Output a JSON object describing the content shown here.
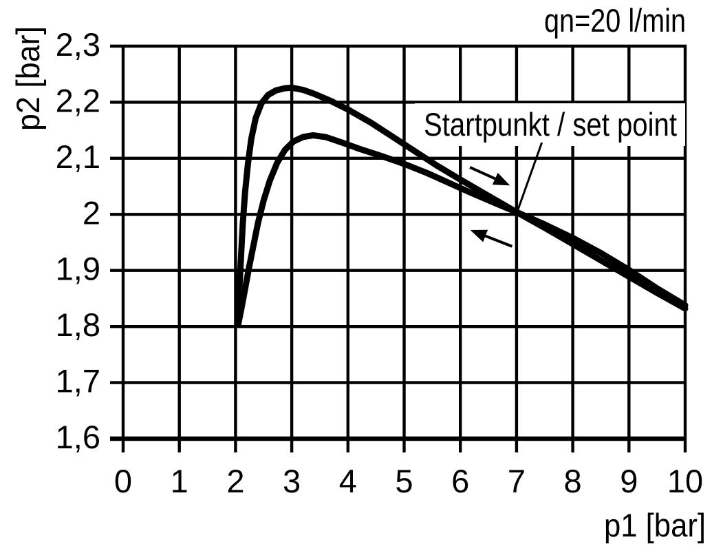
{
  "chart_data": {
    "type": "line",
    "title": "qn=20 l/min",
    "xlabel": "p1 [bar]",
    "ylabel": "p2 [bar]",
    "xlim": [
      0,
      10
    ],
    "ylim": [
      1.6,
      2.3
    ],
    "grid": true,
    "legend": "none",
    "line_color": "#000000",
    "background": "#ffffff",
    "x_ticks": {
      "values": [
        0,
        1,
        2,
        3,
        4,
        5,
        6,
        7,
        8,
        9,
        10
      ],
      "labels": [
        "0",
        "1",
        "2",
        "3",
        "4",
        "5",
        "6",
        "7",
        "8",
        "9",
        "10"
      ]
    },
    "y_ticks": {
      "values": [
        1.6,
        1.7,
        1.8,
        1.9,
        2.0,
        2.1,
        2.2,
        2.3
      ],
      "labels": [
        "1,6",
        "1,7",
        "1,8",
        "1,9",
        "2",
        "2,1",
        "2,2",
        "2,3"
      ]
    },
    "series": [
      {
        "name": "upper-branch",
        "arrow_direction": "right",
        "points": [
          [
            2.05,
            1.805
          ],
          [
            2.07,
            1.87
          ],
          [
            2.1,
            1.93
          ],
          [
            2.13,
            1.985
          ],
          [
            2.17,
            2.04
          ],
          [
            2.22,
            2.09
          ],
          [
            2.28,
            2.135
          ],
          [
            2.36,
            2.172
          ],
          [
            2.46,
            2.198
          ],
          [
            2.58,
            2.213
          ],
          [
            2.72,
            2.221
          ],
          [
            2.88,
            2.225
          ],
          [
            3.0,
            2.226
          ],
          [
            3.2,
            2.222
          ],
          [
            3.4,
            2.215
          ],
          [
            3.7,
            2.202
          ],
          [
            4.0,
            2.187
          ],
          [
            4.4,
            2.164
          ],
          [
            4.8,
            2.138
          ],
          [
            5.2,
            2.112
          ],
          [
            5.6,
            2.086
          ],
          [
            6.0,
            2.062
          ],
          [
            6.5,
            2.033
          ],
          [
            7.0,
            2.004
          ],
          [
            7.5,
            1.976
          ],
          [
            8.0,
            1.947
          ],
          [
            8.5,
            1.918
          ],
          [
            9.0,
            1.889
          ],
          [
            9.5,
            1.86
          ],
          [
            10.0,
            1.832
          ]
        ]
      },
      {
        "name": "lower-branch",
        "arrow_direction": "left",
        "points": [
          [
            2.05,
            1.805
          ],
          [
            2.1,
            1.83
          ],
          [
            2.16,
            1.862
          ],
          [
            2.23,
            1.9
          ],
          [
            2.31,
            1.94
          ],
          [
            2.4,
            1.985
          ],
          [
            2.5,
            2.025
          ],
          [
            2.61,
            2.06
          ],
          [
            2.74,
            2.092
          ],
          [
            2.88,
            2.115
          ],
          [
            3.03,
            2.13
          ],
          [
            3.2,
            2.138
          ],
          [
            3.38,
            2.141
          ],
          [
            3.6,
            2.138
          ],
          [
            3.9,
            2.128
          ],
          [
            4.2,
            2.117
          ],
          [
            4.6,
            2.104
          ],
          [
            5.0,
            2.09
          ],
          [
            5.4,
            2.074
          ],
          [
            5.8,
            2.056
          ],
          [
            6.2,
            2.038
          ],
          [
            6.6,
            2.021
          ],
          [
            7.0,
            2.004
          ],
          [
            7.5,
            1.982
          ],
          [
            8.0,
            1.958
          ],
          [
            8.5,
            1.931
          ],
          [
            9.0,
            1.901
          ],
          [
            9.5,
            1.868
          ],
          [
            10.0,
            1.838
          ]
        ]
      }
    ],
    "annotations": {
      "set_point": {
        "label": "Startpunkt / set point",
        "target": [
          7.02,
          2.007
        ],
        "label_anchor": [
          7.45,
          2.128
        ]
      },
      "arrows": [
        {
          "name": "increasing-p1-arrow",
          "from": [
            6.17,
            2.084
          ],
          "to": [
            6.83,
            2.054
          ]
        },
        {
          "name": "decreasing-p1-arrow",
          "from": [
            6.92,
            1.943
          ],
          "to": [
            6.23,
            1.97
          ]
        }
      ]
    }
  }
}
